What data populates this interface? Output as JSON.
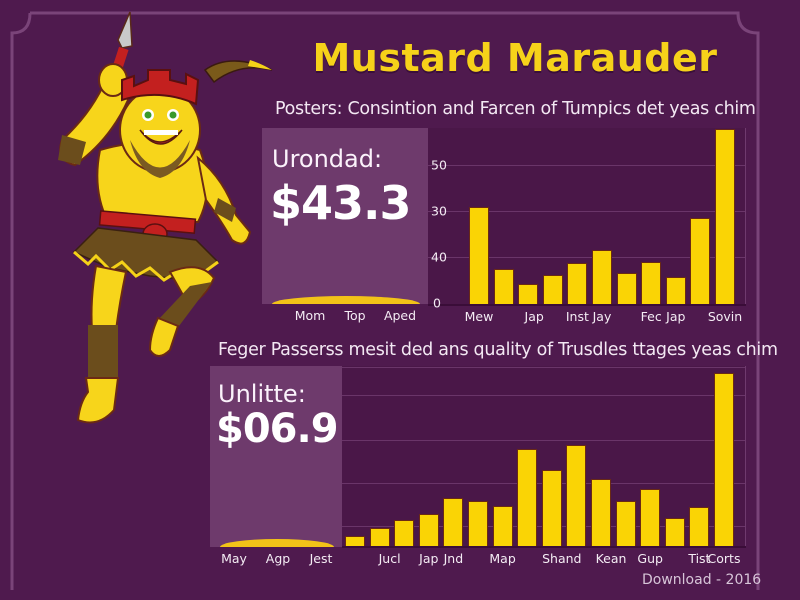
{
  "title": "Mustard Marauder",
  "footer": "Download - 2016",
  "colors": {
    "background": "#4f1a4e",
    "title": "#f6d21a",
    "bar": "#fad405",
    "kpi_panel": "#6e3a6c",
    "plot_bg": "#4a1748"
  },
  "mascot": {
    "description": "cartoon yellow barbarian warrior with red crown helmet, dagger, brown beard and skirt",
    "icon": "warrior-mascot-icon"
  },
  "panels": [
    {
      "subtitle": "Posters: Consintion and Farcen of Tumpics det yeas chim",
      "kpi": {
        "label": "Urondad:",
        "value": "$43.3",
        "x_labels": [
          "Mom",
          "Top",
          "Aped"
        ]
      },
      "y_ticks": [
        "0",
        "40",
        "30",
        "50"
      ]
    },
    {
      "subtitle": "Feger Passerss mesit ded ans quality of Trusdles ttages yeas chim",
      "kpi": {
        "label": "Unlitte:",
        "value": "$06.9",
        "x_labels": [
          "May",
          "Agp",
          "Jest"
        ]
      },
      "y_ticks": []
    }
  ],
  "chart_data": [
    {
      "type": "bar",
      "title": "Posters: Consintion and Farcen of Tumpics det yeas chim",
      "xlabel": "",
      "ylabel": "",
      "categories": [
        "Mew",
        "",
        "Jap",
        "",
        "Inst",
        "Jay",
        "",
        "Fec",
        "Jap",
        "",
        "Sovin"
      ],
      "visible_x_labels": [
        "Mew",
        "Jap",
        "Inst",
        "Jay",
        "Fec",
        "Jap",
        "Sovin"
      ],
      "y_tick_labels": [
        "0",
        "40",
        "30",
        "50"
      ],
      "y_tick_grid_units": [
        0,
        1,
        2,
        3
      ],
      "values": [
        2.1,
        0.76,
        0.43,
        0.63,
        0.89,
        1.17,
        0.67,
        0.91,
        0.59,
        1.87,
        3.8
      ],
      "value_units": "gridline steps (each step = one labeled tick)",
      "ylim": [
        0,
        3.9
      ],
      "grid": true,
      "legend": null,
      "annotation": {
        "label": "Urondad:",
        "value": "$43.3"
      }
    },
    {
      "type": "bar",
      "title": "Feger Passerss mesit ded ans quality of Trusdles ttages yeas chim",
      "xlabel": "",
      "ylabel": "",
      "categories": [
        "",
        "Jucl",
        "",
        "Jap",
        "Jnd",
        "",
        "Map",
        "",
        "Shand",
        "",
        "Kean",
        "",
        "Gup",
        "",
        "Tist",
        "Corts"
      ],
      "visible_x_labels": [
        "Jucl",
        "Jap",
        "Jnd",
        "Map",
        "Shand",
        "Kean",
        "Gup",
        "Tist",
        "Corts"
      ],
      "values": [
        10,
        18,
        26,
        32,
        48,
        45,
        40,
        97,
        76,
        101,
        67,
        45,
        57,
        28,
        39,
        173
      ],
      "value_units": "pixels above baseline (no y-axis labels shown)",
      "ylim": [
        0,
        180
      ],
      "grid": true,
      "legend": null,
      "annotation": {
        "label": "Unlitte:",
        "value": "$06.9"
      }
    }
  ]
}
